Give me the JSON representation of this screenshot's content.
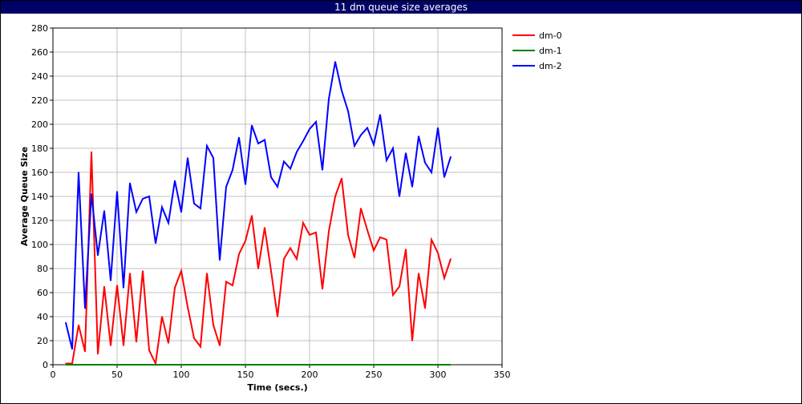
{
  "window": {
    "title": "11 dm queue size averages"
  },
  "chart_data": {
    "type": "line",
    "title": "11 dm queue size averages",
    "xlabel": "Time (secs.)",
    "ylabel": "Average Queue Size",
    "xlim": [
      0,
      350
    ],
    "ylim": [
      0,
      280
    ],
    "xticks": [
      0,
      50,
      100,
      150,
      200,
      250,
      300,
      350
    ],
    "yticks": [
      0,
      20,
      40,
      60,
      80,
      100,
      120,
      140,
      160,
      180,
      200,
      220,
      240,
      260,
      280
    ],
    "grid": true,
    "legend": "top-right",
    "x": [
      10,
      15,
      20,
      25,
      30,
      35,
      40,
      45,
      50,
      55,
      60,
      65,
      70,
      75,
      80,
      85,
      90,
      95,
      100,
      105,
      110,
      115,
      120,
      125,
      130,
      135,
      140,
      145,
      150,
      155,
      160,
      165,
      170,
      175,
      180,
      185,
      190,
      195,
      200,
      205,
      210,
      215,
      220,
      225,
      230,
      235,
      240,
      245,
      250,
      255,
      260,
      265,
      270,
      275,
      280,
      285,
      290,
      295,
      300,
      305,
      310
    ],
    "series": [
      {
        "name": "dm-0",
        "color": "#ff0000",
        "values": [
          1,
          1,
          33,
          11,
          177,
          9,
          65,
          16,
          66,
          16,
          76,
          19,
          78,
          12,
          1,
          40,
          18,
          64,
          78,
          48,
          22,
          15,
          76,
          33,
          16,
          69,
          66,
          92,
          103,
          124,
          80,
          114,
          78,
          40,
          88,
          97,
          88,
          118,
          108,
          110,
          63,
          111,
          140,
          155,
          108,
          89,
          130,
          112,
          95,
          106,
          104,
          58,
          65,
          96,
          20,
          76,
          47,
          104,
          93,
          72,
          88
        ]
      },
      {
        "name": "dm-1",
        "color": "#008000",
        "values": [
          0,
          0,
          0,
          0,
          0,
          0,
          0,
          0,
          0,
          0,
          0,
          0,
          0,
          0,
          0,
          0,
          0,
          0,
          0,
          0,
          0,
          0,
          0,
          0,
          0,
          0,
          0,
          0,
          0,
          0,
          0,
          0,
          0,
          0,
          0,
          0,
          0,
          0,
          0,
          0,
          0,
          0,
          0,
          0,
          0,
          0,
          0,
          0,
          0,
          0,
          0,
          0,
          0,
          0,
          0,
          0,
          0,
          0,
          0,
          0,
          0
        ]
      },
      {
        "name": "dm-2",
        "color": "#0000ff",
        "values": [
          35,
          13,
          160,
          47,
          142,
          91,
          128,
          70,
          144,
          64,
          151,
          127,
          138,
          140,
          101,
          131,
          118,
          153,
          127,
          172,
          134,
          130,
          182,
          172,
          87,
          148,
          162,
          189,
          150,
          199,
          184,
          187,
          156,
          148,
          169,
          163,
          177,
          186,
          196,
          202,
          162,
          221,
          252,
          228,
          211,
          182,
          191,
          197,
          183,
          208,
          170,
          180,
          140,
          176,
          148,
          190,
          168,
          160,
          197,
          156,
          173
        ]
      }
    ]
  }
}
